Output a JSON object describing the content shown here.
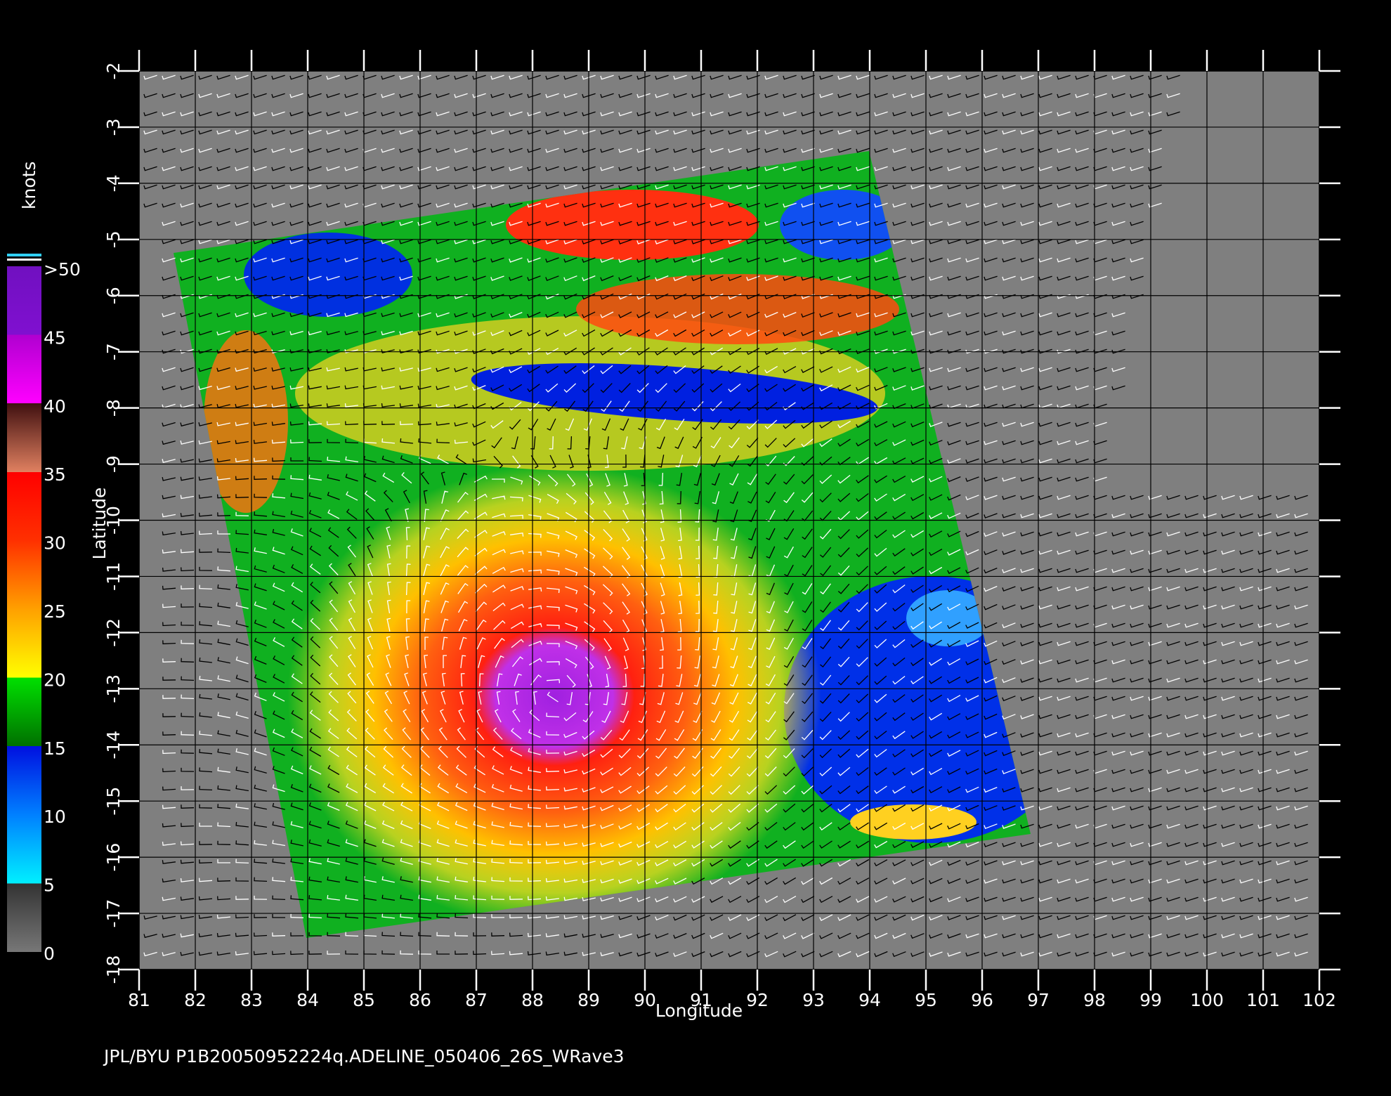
{
  "axes": {
    "x_label": "Longitude",
    "y_label": "Latitude",
    "x_ticks": [
      81,
      82,
      83,
      84,
      85,
      86,
      87,
      88,
      89,
      90,
      91,
      92,
      93,
      94,
      95,
      96,
      97,
      98,
      99,
      100,
      101,
      102
    ],
    "y_ticks": [
      -2,
      -3,
      -4,
      -5,
      -6,
      -7,
      -8,
      -9,
      -10,
      -11,
      -12,
      -13,
      -14,
      -15,
      -16,
      -17,
      -18
    ]
  },
  "colorbar": {
    "unit": "knots",
    "labels": [
      ">50",
      "45",
      "40",
      "35",
      "30",
      "25",
      "20",
      "15",
      "10",
      "5",
      "0"
    ]
  },
  "footer": "JPL/BYU  P1B20050952224q.ADELINE_050406_26S_WRave3"
}
